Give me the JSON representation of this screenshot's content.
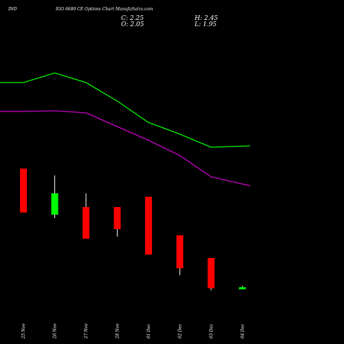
{
  "header": {
    "symbol": "IND",
    "title": "IGO 6680  CE Options  Chart MunafaSutra.com"
  },
  "ohlc": {
    "c": "C: 2.25",
    "h": "H: 2.45",
    "o": "O: 2.05",
    "l": "L: 1.95"
  },
  "chart_data": {
    "type": "candlestick",
    "categories": [
      "25 Nov",
      "26 Nov",
      "27 Nov",
      "28 Nov",
      "01 Dec",
      "02 Dec",
      "03 Dec",
      "04 Dec"
    ],
    "candles": [
      {
        "date": "25 Nov",
        "open": 19.5,
        "high": 19.5,
        "low": 13.1,
        "close": 13.1,
        "color": "#ff0000"
      },
      {
        "date": "26 Nov",
        "open": 12.8,
        "high": 18.5,
        "low": 12.3,
        "close": 15.9,
        "color": "#00ff00"
      },
      {
        "date": "27 Nov",
        "open": 13.9,
        "high": 15.9,
        "low": 9.3,
        "close": 9.3,
        "color": "#ff0000"
      },
      {
        "date": "28 Nov",
        "open": 13.9,
        "high": 13.9,
        "low": 9.6,
        "close": 10.7,
        "color": "#ff0000"
      },
      {
        "date": "01 Dec",
        "open": 15.4,
        "high": 15.4,
        "low": 7.0,
        "close": 7.0,
        "color": "#ff0000"
      },
      {
        "date": "02 Dec",
        "open": 9.8,
        "high": 9.8,
        "low": 4.0,
        "close": 5.0,
        "color": "#ff0000"
      },
      {
        "date": "03 Dec",
        "open": 6.5,
        "high": 6.5,
        "low": 1.8,
        "close": 2.1,
        "color": "#ff0000"
      },
      {
        "date": "04 Dec",
        "open": 2.05,
        "high": 2.45,
        "low": 1.95,
        "close": 2.25,
        "color": "#00ff00"
      }
    ],
    "ma_lines": [
      {
        "color": "#00ff00",
        "x": [
          -0.5,
          1,
          3,
          5,
          7,
          9,
          11,
          13,
          15.5
        ],
        "values": [
          32.0,
          32.0,
          33.4,
          32.0,
          29.3,
          26.2,
          24.5,
          22.6,
          22.8
        ]
      },
      {
        "color": "#cc00cc",
        "x": [
          -0.5,
          1,
          3,
          5,
          7,
          9,
          11,
          13,
          15.5
        ],
        "values": [
          27.8,
          27.8,
          27.9,
          27.6,
          25.6,
          23.6,
          21.4,
          18.3,
          17.0
        ]
      }
    ],
    "ylim": [
      0,
      44
    ],
    "xlim": [
      -0.5,
      21.5
    ],
    "background": "#000000",
    "grid": false
  }
}
